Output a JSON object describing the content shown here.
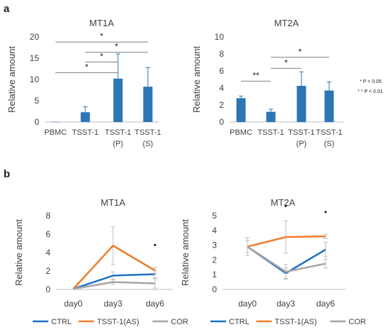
{
  "panels": {
    "a": "a",
    "b": "b"
  },
  "significance_legend": [
    "* P < 0.05",
    "* * P < 0.01"
  ],
  "colors": {
    "bar": "#2E75B6",
    "axis": "#BFBFBF",
    "text": "#404040",
    "CTRL": "#1F6FC5",
    "TSST-1(AS)": "#F07C2A",
    "COR": "#A6A6A6"
  },
  "chart_data": [
    {
      "type": "bar",
      "title": "MT1A",
      "ylabel": "Relative amount",
      "categories": [
        "PBMC",
        "TSST-1",
        "TSST-1\n(P)",
        "TSST-1\n(S)"
      ],
      "values": [
        0.05,
        2.3,
        10.2,
        8.3
      ],
      "errors": [
        0,
        1.3,
        5.8,
        4.5
      ],
      "ylim": [
        0,
        20
      ],
      "yticks": [
        0,
        5,
        10,
        15,
        20
      ],
      "grid": false,
      "brackets": [
        {
          "from": 0,
          "to": 3,
          "y": 18.8,
          "label": "*"
        },
        {
          "from": 1,
          "to": 3,
          "y": 16.4,
          "label": "*"
        },
        {
          "from": 1,
          "to": 2,
          "y": 14.1,
          "label": "*"
        },
        {
          "from": 0,
          "to": 2,
          "y": 11.6,
          "label": "*"
        }
      ]
    },
    {
      "type": "bar",
      "title": "MT2A",
      "ylabel": "Relative amount",
      "categories": [
        "PBMC",
        "TSST-1",
        "TSST-1\n(P)",
        "TSST-1\n(S)"
      ],
      "values": [
        2.8,
        1.2,
        4.25,
        3.7
      ],
      "errors": [
        0.25,
        0.3,
        1.65,
        1.0
      ],
      "ylim": [
        0,
        10
      ],
      "yticks": [
        0,
        2,
        4,
        6,
        8,
        10
      ],
      "grid": false,
      "brackets": [
        {
          "from": 1,
          "to": 3,
          "y": 7.6,
          "label": "*"
        },
        {
          "from": 1,
          "to": 2,
          "y": 6.3,
          "label": "*"
        },
        {
          "from": 0,
          "to": 1,
          "y": 4.8,
          "label": "**"
        }
      ]
    },
    {
      "type": "line",
      "title": "MT1A",
      "ylabel": "Relative amount",
      "x": [
        "day0",
        "day3",
        "day6"
      ],
      "ylim": [
        0,
        8
      ],
      "yticks": [
        0,
        2,
        4,
        6,
        8
      ],
      "grid": false,
      "legend": "bottom",
      "series": [
        {
          "name": "CTRL",
          "values": [
            0.05,
            1.5,
            1.65
          ],
          "errors": [
            0,
            0.4,
            0.4
          ]
        },
        {
          "name": "TSST-1(AS)",
          "values": [
            0.05,
            4.75,
            2.05
          ],
          "errors": [
            0,
            2.05,
            0.3
          ]
        },
        {
          "name": "COR",
          "values": [
            0.05,
            0.8,
            0.65
          ],
          "errors": [
            0,
            0.25,
            0.5
          ]
        }
      ],
      "annotations": [
        {
          "x_index": 2,
          "y": 4.5,
          "label": "•"
        }
      ]
    },
    {
      "type": "line",
      "title": "MT2A",
      "ylabel": "Relative amount",
      "x": [
        "day0",
        "day3",
        "day6"
      ],
      "ylim": [
        0,
        5
      ],
      "yticks": [
        0,
        1,
        2,
        3,
        4,
        5
      ],
      "grid": false,
      "legend": "bottom",
      "series": [
        {
          "name": "CTRL",
          "values": [
            2.9,
            1.1,
            2.7
          ],
          "errors": [
            0.6,
            0.35,
            0.5
          ]
        },
        {
          "name": "TSST-1(AS)",
          "values": [
            2.9,
            3.55,
            3.6
          ],
          "errors": [
            0.4,
            1.1,
            0.15
          ]
        },
        {
          "name": "COR",
          "values": [
            2.9,
            1.2,
            1.75
          ],
          "errors": [
            0.4,
            0.5,
            0.3
          ]
        }
      ],
      "annotations": [
        {
          "x_index": 1,
          "y": 5.45,
          "label": "•"
        },
        {
          "x_index": 2,
          "y": 5.05,
          "label": "•"
        }
      ]
    }
  ]
}
